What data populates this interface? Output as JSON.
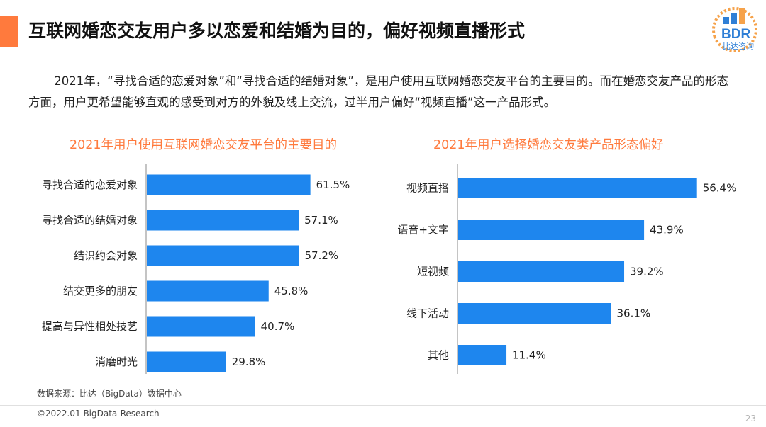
{
  "slide": {
    "title": "互联网婚恋交友用户多以恋爱和结婚为目的，偏好视频直播形式",
    "intro": "2021年，“寻找合适的恋爱对象”和“寻找合适的结婚对象”，是用户使用互联网婚恋交友平台的主要目的。而在婚恋交友产品的形态方面，用户更希望能够直观的感受到对方的外貌及线上交流，过半用户偏好“视频直播”这一产品形式。",
    "source": "数据来源：比达（BigData）数据中心",
    "copyright": "©2022.01 BigData-Research",
    "page_number": "23"
  },
  "logo": {
    "text": "BDR",
    "subtitle": "比达咨询"
  },
  "colors": {
    "accent": "#ff7a3d",
    "bar": "#1e86ee",
    "logo_blue": "#2f7fd6",
    "logo_orange": "#f6a24a"
  },
  "chart_data": [
    {
      "type": "bar",
      "orientation": "horizontal",
      "title": "2021年用户使用互联网婚恋交友平台的主要目的",
      "categories": [
        "寻找合适的恋爱对象",
        "寻找合适的结婚对象",
        "结识约会对象",
        "结交更多的朋友",
        "提高与异性相处技艺",
        "消磨时光"
      ],
      "values": [
        61.5,
        57.1,
        57.2,
        45.8,
        40.7,
        29.8
      ],
      "value_labels": [
        "61.5%",
        "57.1%",
        "57.2%",
        "45.8%",
        "40.7%",
        "29.8%"
      ],
      "unit": "%",
      "xlim": [
        0,
        100
      ],
      "grid": false,
      "legend": "none"
    },
    {
      "type": "bar",
      "orientation": "horizontal",
      "title": "2021年用户选择婚恋交友类产品形态偏好",
      "categories": [
        "视频直播",
        "语音+文字",
        "短视频",
        "线下活动",
        "其他"
      ],
      "values": [
        56.4,
        43.9,
        39.2,
        36.1,
        11.4
      ],
      "value_labels": [
        "56.4%",
        "43.9%",
        "39.2%",
        "36.1%",
        "11.4%"
      ],
      "unit": "%",
      "xlim": [
        0,
        100
      ],
      "grid": false,
      "legend": "none"
    }
  ]
}
